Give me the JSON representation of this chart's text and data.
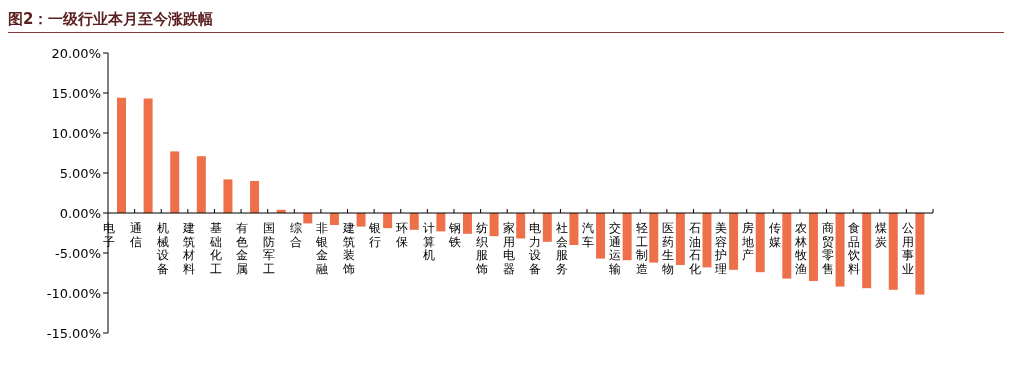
{
  "chart_data": {
    "type": "bar",
    "title": "图2：一级行业本月至今涨跌幅",
    "categories": [
      "电子",
      "通信",
      "机械设备",
      "建筑材料",
      "基础化工",
      "有色金属",
      "国防军工",
      "综合",
      "非银金融",
      "建筑装饰",
      "银行",
      "环保",
      "计算机",
      "钢铁",
      "纺织服饰",
      "家用电器",
      "电力设备",
      "社会服务",
      "汽车",
      "交通运输",
      "轻工制造",
      "医药生物",
      "石油石化",
      "美容护理",
      "房地产",
      "传媒",
      "农林牧渔",
      "商贸零售",
      "食品饮料",
      "煤炭",
      "公用事业"
    ],
    "values": [
      14.4,
      14.3,
      7.7,
      7.1,
      4.2,
      4.0,
      0.4,
      -1.3,
      -1.5,
      -1.7,
      -1.9,
      -2.1,
      -2.3,
      -2.6,
      -2.9,
      -3.2,
      -3.6,
      -4.0,
      -5.7,
      -5.9,
      -6.2,
      -6.5,
      -6.8,
      -7.1,
      -7.4,
      -8.2,
      -8.5,
      -9.2,
      -9.4,
      -9.6,
      -10.2
    ],
    "color": "#ee7049",
    "ylim": [
      -15,
      20
    ],
    "yticks": [
      {
        "value": -15,
        "label": "-15.00%"
      },
      {
        "value": -10,
        "label": "-10.00%"
      },
      {
        "value": -5,
        "label": "-5.00%"
      },
      {
        "value": 0,
        "label": "0.00%"
      },
      {
        "value": 5,
        "label": "5.00%"
      },
      {
        "value": 10,
        "label": "10.00%"
      },
      {
        "value": 15,
        "label": "15.00%"
      },
      {
        "value": 20,
        "label": "20.00%"
      }
    ],
    "grid": false,
    "legend": false
  }
}
